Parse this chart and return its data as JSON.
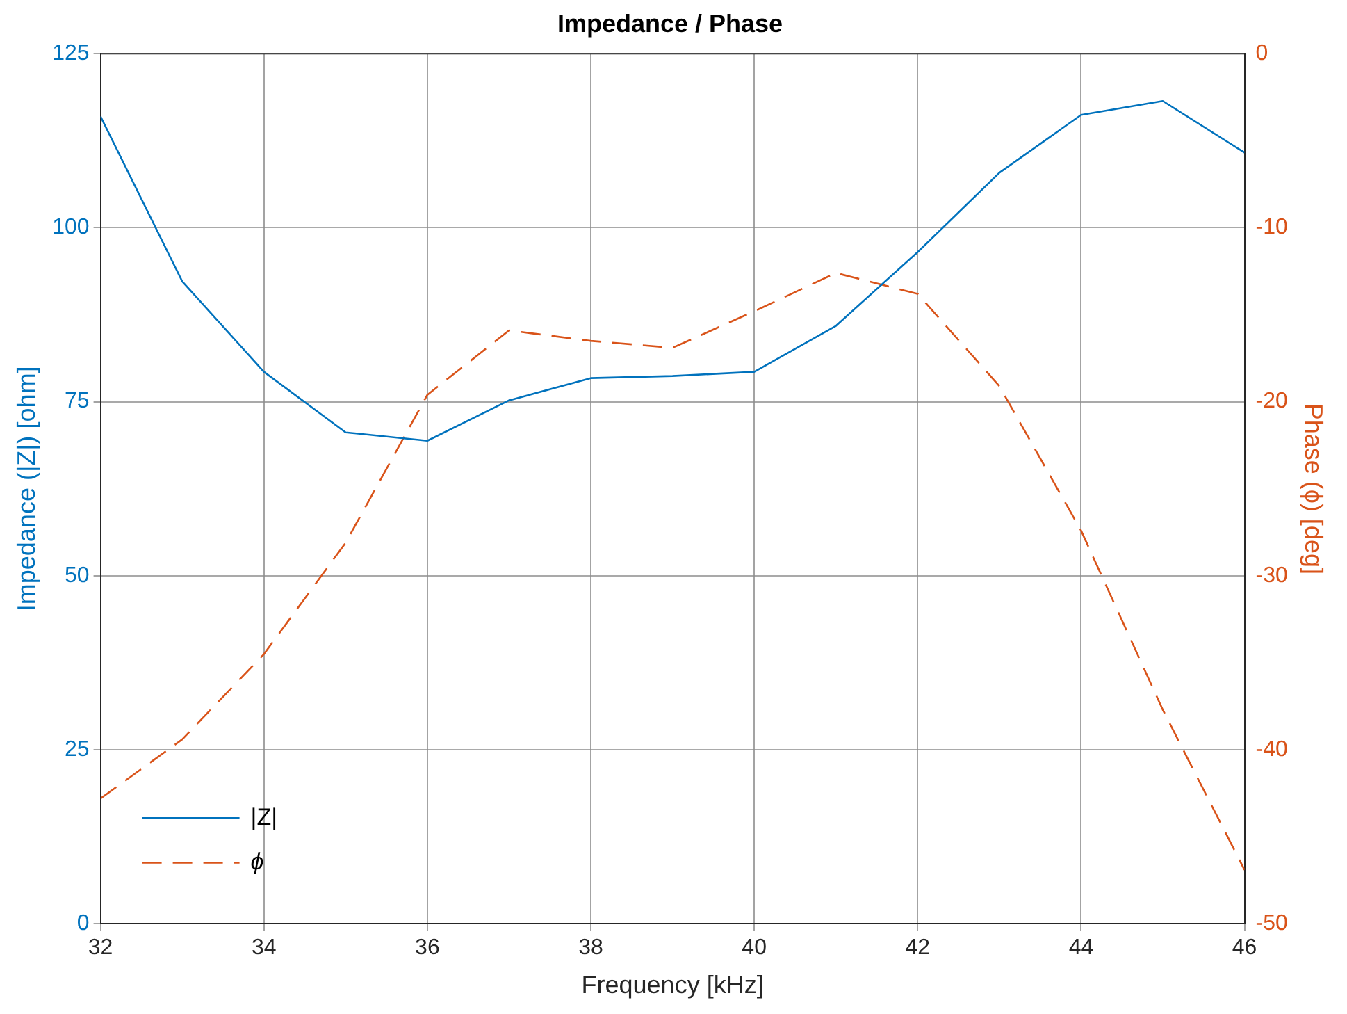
{
  "chart_data": {
    "type": "line",
    "title": "Impedance / Phase",
    "xlabel": "Frequency [kHz]",
    "ylabel": "Impedance (|Z|) [ohm]",
    "y2label": "Phase (ϕ) [deg]",
    "x": [
      32,
      33,
      34,
      35,
      36,
      37,
      38,
      39,
      40,
      41,
      42,
      43,
      44,
      45,
      46
    ],
    "series": [
      {
        "name": "|Z|",
        "color": "#0072bd",
        "line_style": "solid",
        "values": [
          116.0,
          92.3,
          79.3,
          70.6,
          69.4,
          75.2,
          78.4,
          78.7,
          79.3,
          85.9,
          96.5,
          107.9,
          116.2,
          118.2,
          110.8
        ]
      },
      {
        "name": "ϕ",
        "color": "#d95319",
        "line_style": "dashed",
        "axis": "y2",
        "values": [
          -42.8,
          -39.4,
          -34.5,
          -28.1,
          -19.6,
          -15.9,
          -16.5,
          -16.9,
          -14.8,
          -12.6,
          -13.8,
          -19.1,
          -27.4,
          -37.7,
          -46.9
        ]
      }
    ],
    "xlim": [
      32,
      46
    ],
    "xticks": [
      32,
      34,
      36,
      38,
      40,
      42,
      44,
      46
    ],
    "ylim": [
      0,
      125
    ],
    "yticks": [
      0,
      25,
      50,
      75,
      100,
      125
    ],
    "y2lim": [
      -50,
      0
    ],
    "y2ticks": [
      -50,
      -40,
      -30,
      -20,
      -10,
      0
    ],
    "grid": true,
    "legend": "bottom left",
    "marker": "none"
  }
}
